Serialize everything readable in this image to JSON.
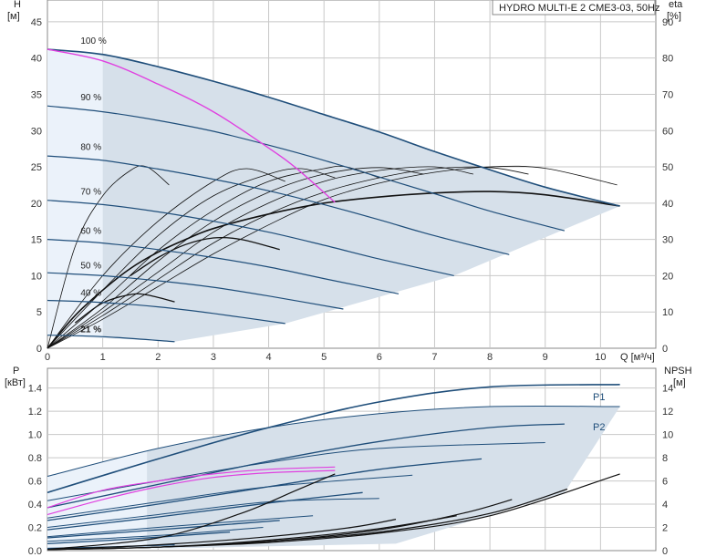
{
  "chart_data": [
    {
      "type": "line",
      "title": "HYDRO MULTI-E 2 CME3-03, 50Hz",
      "xlabel": "Q [м³/ч]",
      "ylabel": "H",
      "ylabel_unit": "[м]",
      "y2label": "eta",
      "y2label_unit": "[%]",
      "xlim": [
        0,
        11
      ],
      "ylim": [
        0,
        48
      ],
      "y2lim": [
        0,
        96
      ],
      "xticks": [
        "0",
        "1",
        "2",
        "3",
        "4",
        "5",
        "6",
        "7",
        "8",
        "9",
        "10"
      ],
      "yticks": [
        "0",
        "5",
        "10",
        "15",
        "20",
        "25",
        "30",
        "35",
        "40",
        "45"
      ],
      "y2ticks": [
        "0",
        "10",
        "20",
        "30",
        "40",
        "50",
        "60",
        "70",
        "80",
        "90"
      ],
      "grid": true,
      "speed_series": [
        {
          "name": "100 %",
          "x": [
            0,
            1,
            2,
            3,
            4,
            5,
            6,
            7,
            8,
            9,
            10.35
          ],
          "values": [
            41.2,
            40.5,
            38.8,
            36.8,
            34.6,
            32.2,
            29.8,
            27.1,
            24.6,
            22.2,
            19.6
          ]
        },
        {
          "name": "90 %",
          "x": [
            0,
            1,
            2,
            3,
            4,
            5,
            6,
            7,
            8,
            9.35
          ],
          "values": [
            33.4,
            32.6,
            31.4,
            29.9,
            28.0,
            25.9,
            23.6,
            21.3,
            18.9,
            16.2
          ]
        },
        {
          "name": "80 %",
          "x": [
            0,
            1,
            2,
            3,
            4,
            5,
            6,
            7,
            8.35
          ],
          "values": [
            26.5,
            25.9,
            24.7,
            23.3,
            21.7,
            19.8,
            17.7,
            15.5,
            12.9
          ]
        },
        {
          "name": "70 %",
          "x": [
            0,
            1,
            2,
            3,
            4,
            5,
            6,
            7.35
          ],
          "values": [
            20.4,
            19.8,
            18.8,
            17.5,
            16.0,
            14.2,
            12.3,
            10.0
          ]
        },
        {
          "name": "60 %",
          "x": [
            0,
            1,
            2,
            3,
            4,
            5,
            6.35
          ],
          "values": [
            15.0,
            14.5,
            13.6,
            12.5,
            11.2,
            9.6,
            7.5
          ]
        },
        {
          "name": "50 %",
          "x": [
            0,
            1,
            2,
            3,
            4,
            5.35
          ],
          "values": [
            10.4,
            10.0,
            9.3,
            8.4,
            7.2,
            5.4
          ]
        },
        {
          "name": "40 %",
          "x": [
            0,
            1,
            2,
            3,
            4.3
          ],
          "values": [
            6.6,
            6.3,
            5.7,
            4.8,
            3.4
          ]
        },
        {
          "name": "21 %",
          "x": [
            0,
            1,
            2.3
          ],
          "values": [
            1.8,
            1.6,
            0.9
          ]
        }
      ],
      "max_curve": {
        "x": [
          0,
          1,
          2,
          3,
          4,
          4.5,
          5.2
        ],
        "values": [
          41.2,
          39.6,
          36.4,
          32.6,
          27.6,
          24.8,
          20.1
        ]
      },
      "efficiency_series": [
        {
          "x": [
            0,
            0.5,
            1,
            1.5,
            1.8,
            2.2
          ],
          "values": [
            0,
            28,
            42,
            49,
            50,
            45
          ]
        },
        {
          "x": [
            0,
            1,
            2,
            3,
            3.6,
            4.3
          ],
          "values": [
            0,
            20,
            35,
            46,
            49.5,
            46
          ]
        },
        {
          "x": [
            0,
            1,
            2,
            3,
            4,
            4.6,
            5.2
          ],
          "values": [
            0,
            16,
            31,
            42,
            48,
            49.5,
            47
          ]
        },
        {
          "x": [
            0,
            1,
            2,
            3,
            4,
            5,
            5.4,
            6.0
          ],
          "values": [
            0,
            13,
            27,
            38,
            46,
            49.5,
            50,
            47
          ]
        },
        {
          "x": [
            0,
            1,
            2,
            3,
            4,
            5,
            6,
            6.8
          ],
          "values": [
            0,
            11,
            24,
            35,
            43,
            48,
            49.8,
            48
          ]
        },
        {
          "x": [
            0,
            1,
            2,
            3,
            4,
            5,
            6,
            7,
            7.7
          ],
          "values": [
            0,
            10,
            21,
            32,
            40,
            46,
            49,
            50,
            48
          ]
        },
        {
          "x": [
            0,
            1,
            2,
            3,
            4,
            5,
            6,
            7,
            8,
            8.7
          ],
          "values": [
            0,
            9,
            19,
            29,
            37,
            43,
            47,
            49.5,
            49.8,
            48
          ]
        },
        {
          "x": [
            0,
            1,
            2,
            3,
            4,
            5,
            6,
            7,
            8,
            9,
            10.3
          ],
          "values": [
            0,
            8,
            17,
            26,
            34,
            41,
            45.5,
            48.5,
            50,
            49.6,
            45
          ]
        }
      ],
      "bep_efficiency": {
        "x": [
          0,
          0.5,
          1,
          1.5,
          2,
          2.5,
          3,
          4,
          5,
          6,
          7,
          8,
          9,
          10.35
        ],
        "values": [
          0,
          9,
          16,
          22,
          26.5,
          30,
          33,
          37,
          40,
          41.7,
          42.8,
          43.2,
          42.3,
          39.2
        ]
      },
      "small_eff": [
        {
          "x": [
            0.5,
            1,
            1.5,
            1.8,
            2.3
          ],
          "values": [
            7,
            12.5,
            14.8,
            14.7,
            12.8
          ]
        },
        {
          "x": [
            1.5,
            2,
            2.5,
            3,
            3.5,
            4.2
          ],
          "values": [
            20,
            25,
            28.6,
            30.4,
            30.0,
            27.2
          ]
        }
      ]
    },
    {
      "type": "line",
      "xlabel": "",
      "ylabel": "P",
      "ylabel_unit": "[кВт]",
      "y2label": "NPSH",
      "y2label_unit": "[м]",
      "xlim": [
        0,
        11
      ],
      "ylim": [
        0,
        1.57
      ],
      "y2lim": [
        0,
        15.7
      ],
      "yticks": [
        "0.0",
        "0.2",
        "0.4",
        "0.6",
        "0.8",
        "1.0",
        "1.2",
        "1.4"
      ],
      "y2ticks": [
        "0",
        "2",
        "4",
        "6",
        "8",
        "10",
        "12",
        "14"
      ],
      "grid": true,
      "labels": [
        "P1",
        "P2"
      ],
      "p1_series": [
        {
          "x": [
            0,
            2,
            4,
            6,
            8,
            10.35
          ],
          "values": [
            0.5,
            0.79,
            1.06,
            1.28,
            1.41,
            1.43
          ]
        },
        {
          "x": [
            0,
            2,
            4,
            6,
            8,
            9.35
          ],
          "values": [
            0.37,
            0.57,
            0.77,
            0.94,
            1.06,
            1.09
          ]
        },
        {
          "x": [
            0,
            2,
            4,
            6,
            7.85
          ],
          "values": [
            0.26,
            0.4,
            0.55,
            0.7,
            0.79
          ]
        },
        {
          "x": [
            0,
            2,
            4,
            5.7
          ],
          "values": [
            0.18,
            0.29,
            0.41,
            0.5
          ]
        },
        {
          "x": [
            0,
            2,
            4.2
          ],
          "values": [
            0.11,
            0.18,
            0.26
          ]
        },
        {
          "x": [
            0,
            1.5,
            3.3
          ],
          "values": [
            0.06,
            0.1,
            0.16
          ]
        },
        {
          "x": [
            0,
            1,
            2.3
          ],
          "values": [
            0.02,
            0.03,
            0.05
          ]
        }
      ],
      "p2_series": [
        {
          "x": [
            0,
            2,
            4,
            6,
            8,
            10.35
          ],
          "values": [
            0.64,
            0.88,
            1.06,
            1.18,
            1.24,
            1.24
          ]
        },
        {
          "x": [
            0,
            2,
            4,
            6,
            9
          ],
          "values": [
            0.43,
            0.6,
            0.76,
            0.88,
            0.93
          ]
        },
        {
          "x": [
            0,
            2,
            4,
            6.6
          ],
          "values": [
            0.28,
            0.42,
            0.55,
            0.65
          ]
        },
        {
          "x": [
            0,
            2,
            4,
            6
          ],
          "values": [
            0.2,
            0.31,
            0.42,
            0.45
          ]
        },
        {
          "x": [
            0,
            2,
            4.8
          ],
          "values": [
            0.12,
            0.2,
            0.3
          ]
        },
        {
          "x": [
            0,
            2,
            3.9
          ],
          "values": [
            0.08,
            0.13,
            0.2
          ]
        }
      ],
      "max_power": [
        {
          "x": [
            0,
            1,
            2,
            3,
            4,
            5.2
          ],
          "values": [
            0.37,
            0.52,
            0.6,
            0.66,
            0.7,
            0.72
          ]
        },
        {
          "x": [
            0,
            1,
            2,
            3,
            4,
            5.2
          ],
          "values": [
            0.31,
            0.44,
            0.55,
            0.63,
            0.67,
            0.69
          ]
        }
      ],
      "npsh_series": [
        {
          "x": [
            0,
            2,
            3.5,
            4.5,
            5.2
          ],
          "values": [
            0.1,
            1.1,
            3.2,
            5.2,
            6.6
          ]
        },
        {
          "x": [
            0,
            2,
            4,
            5.5,
            6.3
          ],
          "values": [
            0.1,
            0.5,
            1.2,
            2.0,
            2.7
          ]
        },
        {
          "x": [
            0,
            2,
            4,
            6,
            7.4
          ],
          "values": [
            0.1,
            0.3,
            0.9,
            1.9,
            3.0
          ]
        },
        {
          "x": [
            0,
            2,
            4,
            6,
            7.5,
            8.4
          ],
          "values": [
            0.1,
            0.3,
            0.8,
            1.8,
            3.2,
            4.4
          ]
        },
        {
          "x": [
            0,
            2,
            4,
            6,
            8,
            9.4
          ],
          "values": [
            0.1,
            0.3,
            0.8,
            1.6,
            3.2,
            5.3
          ]
        },
        {
          "x": [
            0,
            2,
            4,
            6,
            8,
            10.35
          ],
          "values": [
            0.1,
            0.3,
            0.7,
            1.5,
            3.0,
            6.6
          ]
        }
      ]
    }
  ],
  "colors": {
    "envelope_fill": "#d6e0ea",
    "light_fill": "#ebf2fa",
    "speed_curve": "#1f4e7a",
    "max_curve": "#e040e0",
    "efficiency": "#111111",
    "grid": "#c8c8c8"
  }
}
